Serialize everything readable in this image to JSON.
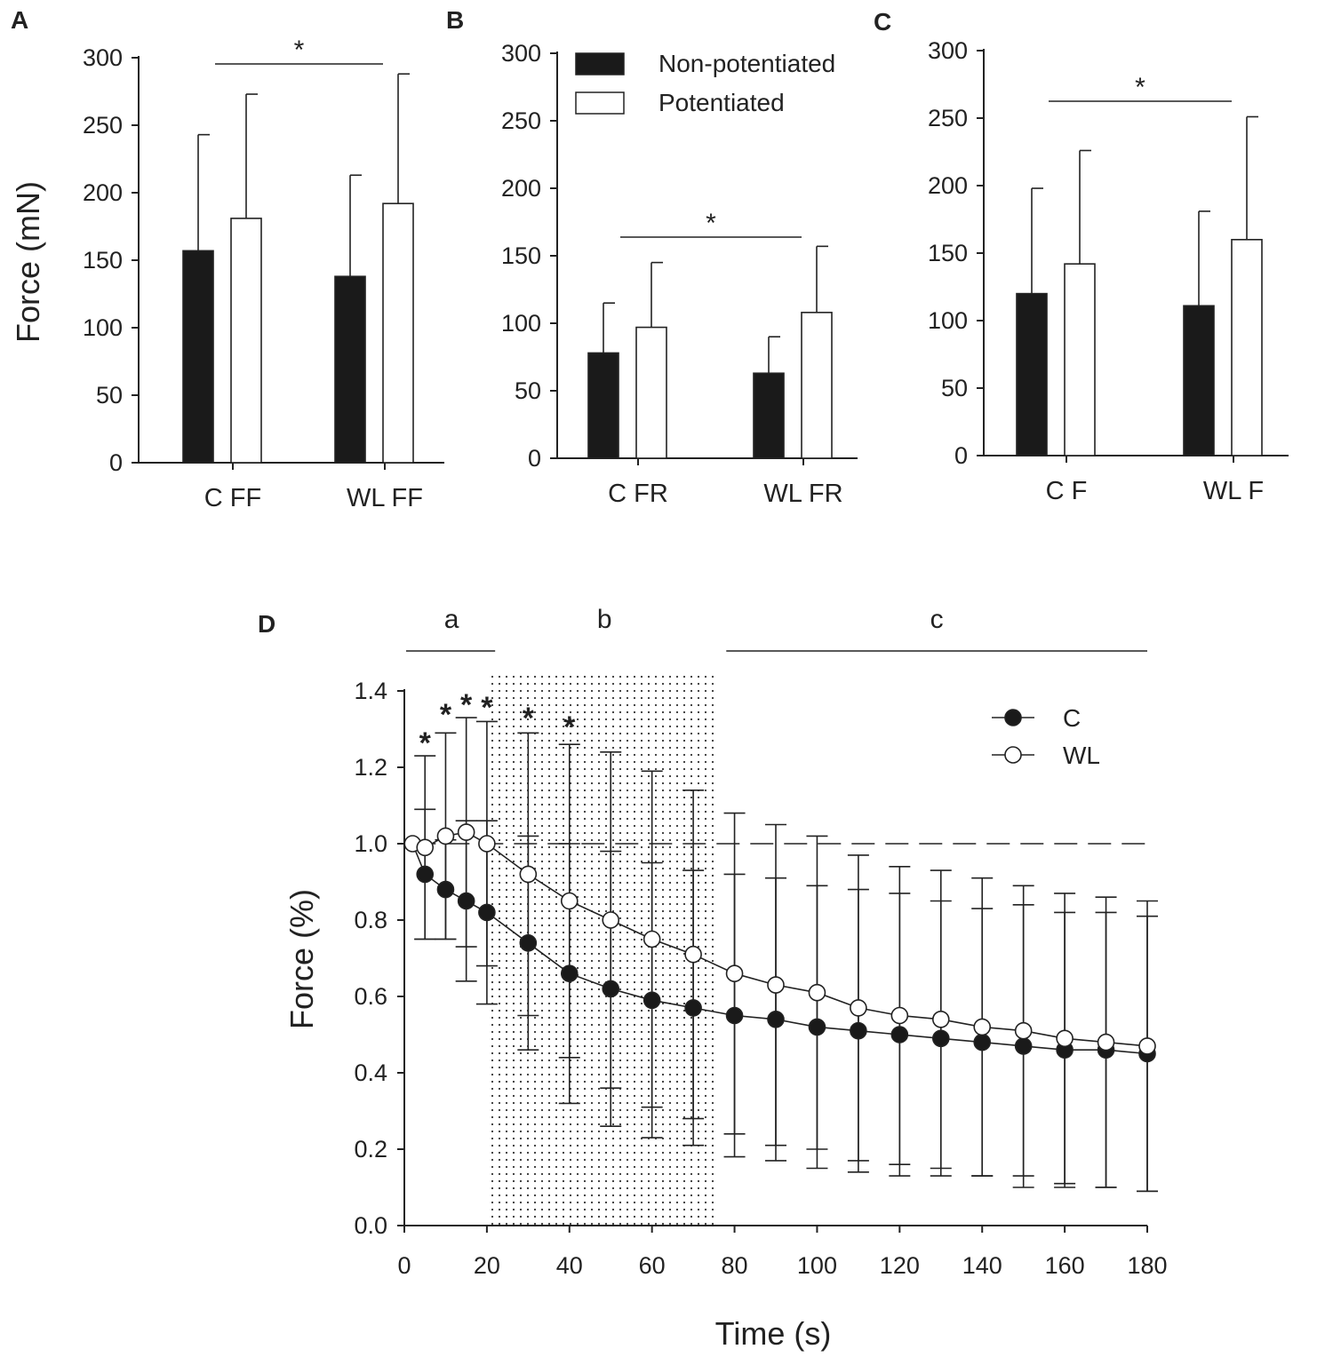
{
  "figure": {
    "colors": {
      "non_potentiated": "#1a1a1a",
      "potentiated": "#ffffff",
      "axis": "#222222"
    },
    "legend_ab": {
      "non_potentiated": "Non-potentiated",
      "potentiated": "Potentiated"
    }
  },
  "chart_data": [
    {
      "panel": "A",
      "type": "bar",
      "ylabel": "Force (mN)",
      "ylim": [
        0,
        300
      ],
      "yticks": [
        "0",
        "50",
        "100",
        "150",
        "200",
        "250",
        "300"
      ],
      "categories": [
        "C FF",
        "WL FF"
      ],
      "series": [
        {
          "name": "Non-potentiated",
          "values": [
            157,
            138
          ],
          "errors": [
            86,
            75
          ]
        },
        {
          "name": "Potentiated",
          "values": [
            181,
            192
          ],
          "errors": [
            92,
            96
          ]
        }
      ],
      "significance": "*"
    },
    {
      "panel": "B",
      "type": "bar",
      "ylim": [
        0,
        300
      ],
      "yticks": [
        "0",
        "50",
        "100",
        "150",
        "200",
        "250",
        "300"
      ],
      "categories": [
        "C FR",
        "WL FR"
      ],
      "series": [
        {
          "name": "Non-potentiated",
          "values": [
            78,
            63
          ],
          "errors": [
            37,
            27
          ]
        },
        {
          "name": "Potentiated",
          "values": [
            97,
            108
          ],
          "errors": [
            48,
            49
          ]
        }
      ],
      "significance": "*"
    },
    {
      "panel": "C",
      "type": "bar",
      "ylim": [
        0,
        300
      ],
      "yticks": [
        "0",
        "50",
        "100",
        "150",
        "200",
        "250",
        "300"
      ],
      "categories": [
        "C F",
        "WL F"
      ],
      "series": [
        {
          "name": "Non-potentiated",
          "values": [
            120,
            111
          ],
          "errors": [
            78,
            70
          ]
        },
        {
          "name": "Potentiated",
          "values": [
            142,
            160
          ],
          "errors": [
            84,
            91
          ]
        }
      ],
      "significance": "*"
    },
    {
      "panel": "D",
      "type": "line",
      "xlabel": "Time (s)",
      "ylabel": "Force (%)",
      "xlim": [
        0,
        180
      ],
      "ylim": [
        0,
        1.4
      ],
      "xticks": [
        "0",
        "20",
        "40",
        "60",
        "80",
        "100",
        "120",
        "140",
        "160",
        "180"
      ],
      "yticks": [
        "0.0",
        "0.2",
        "0.4",
        "0.6",
        "0.8",
        "1.0",
        "1.2",
        "1.4"
      ],
      "x": [
        5,
        10,
        15,
        20,
        30,
        40,
        50,
        60,
        70,
        80,
        90,
        100,
        110,
        120,
        130,
        140,
        150,
        160,
        170,
        180
      ],
      "series": [
        {
          "name": "C",
          "start": {
            "x": 2,
            "y": 1.0
          },
          "values": [
            0.92,
            0.88,
            0.85,
            0.82,
            0.74,
            0.66,
            0.62,
            0.59,
            0.57,
            0.55,
            0.54,
            0.52,
            0.51,
            0.5,
            0.49,
            0.48,
            0.47,
            0.46,
            0.46,
            0.45
          ],
          "errors": [
            0.17,
            0.13,
            0.21,
            0.24,
            0.28,
            0.34,
            0.36,
            0.36,
            0.36,
            0.37,
            0.37,
            0.37,
            0.37,
            0.37,
            0.36,
            0.35,
            0.37,
            0.36,
            0.36,
            0.36
          ]
        },
        {
          "name": "WL",
          "start": {
            "x": 2,
            "y": 1.0
          },
          "values": [
            0.99,
            1.02,
            1.03,
            1.0,
            0.92,
            0.85,
            0.8,
            0.75,
            0.71,
            0.66,
            0.63,
            0.61,
            0.57,
            0.55,
            0.54,
            0.52,
            0.51,
            0.49,
            0.48,
            0.47
          ],
          "errors": [
            0.24,
            0.27,
            0.3,
            0.32,
            0.37,
            0.41,
            0.44,
            0.44,
            0.43,
            0.42,
            0.42,
            0.41,
            0.4,
            0.39,
            0.39,
            0.39,
            0.38,
            0.38,
            0.38,
            0.38
          ]
        }
      ],
      "reference_line": 1.0,
      "significant_times": [
        5,
        10,
        15,
        20,
        30,
        40
      ],
      "significance": "*",
      "phases": [
        {
          "label": "a",
          "start": 0,
          "end": 22
        },
        {
          "label": "b",
          "start": 21,
          "end": 76,
          "shaded": true
        },
        {
          "label": "c",
          "start": 78,
          "end": 180
        }
      ]
    }
  ]
}
